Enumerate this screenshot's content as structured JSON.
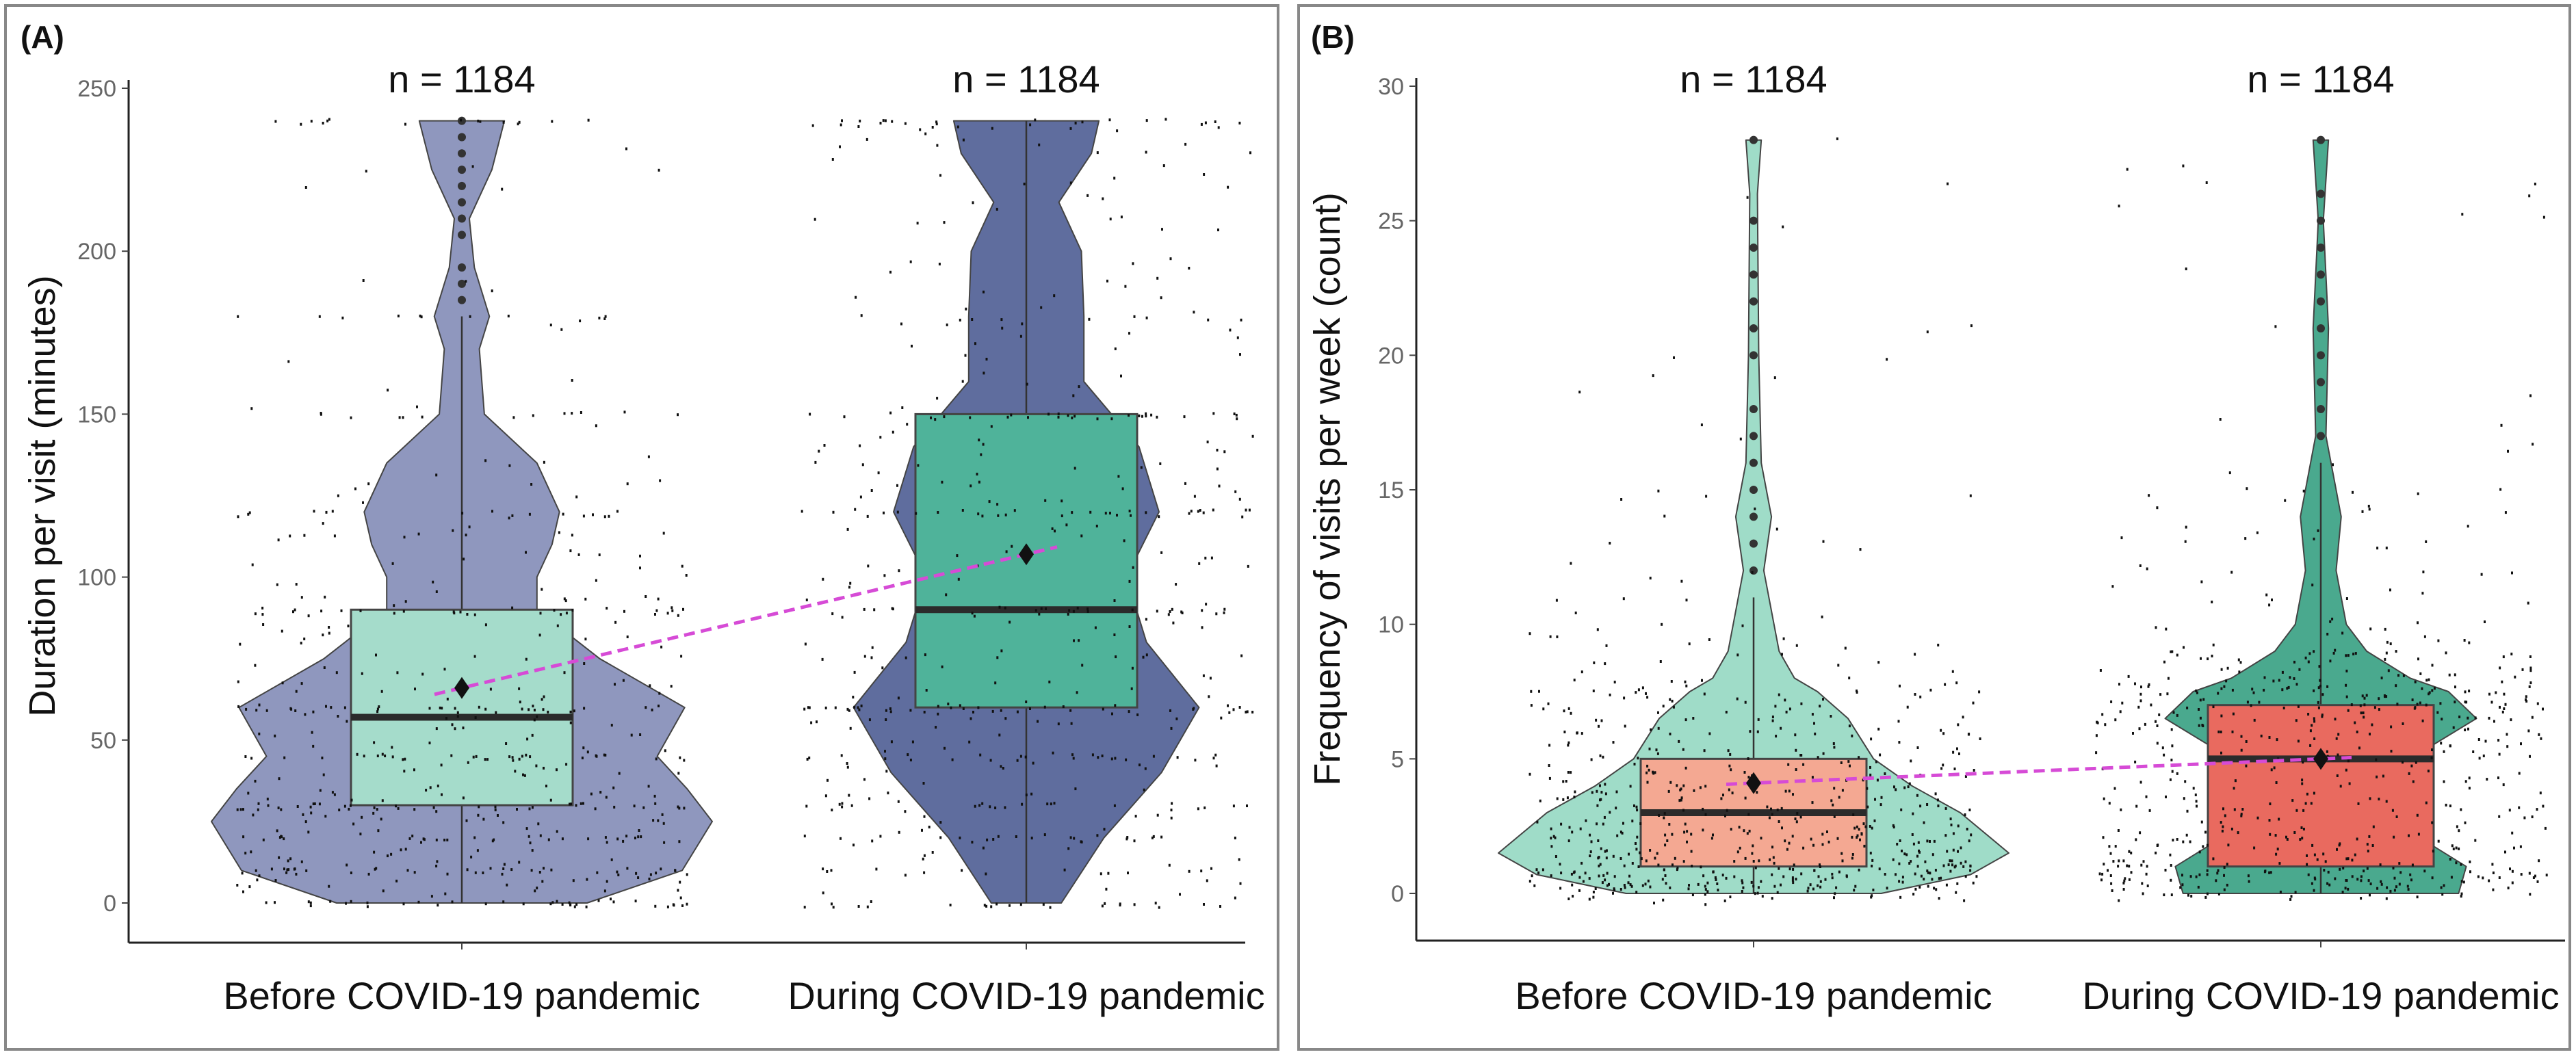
{
  "chart_data": [
    {
      "type": "violin-box",
      "panel_label": "(A)",
      "ylabel": "Duration per visit (minutes)",
      "ylim": [
        0,
        250
      ],
      "yticks": [
        0,
        50,
        100,
        150,
        200,
        250
      ],
      "categories": [
        "Before COVID-19 pandemic",
        "During COVID-19 pandemic"
      ],
      "n_labels": [
        "n = 1184",
        "n = 1184"
      ],
      "groups": [
        {
          "name": "Before COVID-19 pandemic",
          "n": 1184,
          "violin_color": "#8f97be",
          "box_color": "#a5dccb",
          "q1": 30,
          "median": 57,
          "q3": 90,
          "mean": 66,
          "whisker_low": 0,
          "whisker_high": 180,
          "outliers": [
            185,
            190,
            195,
            205,
            210,
            215,
            220,
            225,
            230,
            235,
            240
          ],
          "density": [
            [
              0,
              0.5
            ],
            [
              10,
              0.88
            ],
            [
              25,
              1.0
            ],
            [
              35,
              0.9
            ],
            [
              45,
              0.78
            ],
            [
              60,
              0.89
            ],
            [
              75,
              0.55
            ],
            [
              90,
              0.3
            ],
            [
              100,
              0.3
            ],
            [
              110,
              0.36
            ],
            [
              120,
              0.39
            ],
            [
              135,
              0.3
            ],
            [
              150,
              0.09
            ],
            [
              170,
              0.07
            ],
            [
              180,
              0.11
            ],
            [
              195,
              0.05
            ],
            [
              210,
              0.03
            ],
            [
              225,
              0.12
            ],
            [
              240,
              0.17
            ]
          ]
        },
        {
          "name": "During COVID-19 pandemic",
          "n": 1184,
          "violin_color": "#5f6d9e",
          "box_color": "#4fb39a",
          "q1": 60,
          "median": 90,
          "q3": 150,
          "mean": 107,
          "whisker_low": 0,
          "whisker_high": 240,
          "outliers": [],
          "density": [
            [
              0,
              0.14
            ],
            [
              20,
              0.31
            ],
            [
              40,
              0.54
            ],
            [
              60,
              0.69
            ],
            [
              80,
              0.48
            ],
            [
              100,
              0.4
            ],
            [
              120,
              0.53
            ],
            [
              140,
              0.45
            ],
            [
              160,
              0.23
            ],
            [
              180,
              0.23
            ],
            [
              200,
              0.22
            ],
            [
              215,
              0.13
            ],
            [
              230,
              0.26
            ],
            [
              240,
              0.29
            ]
          ]
        }
      ],
      "mean_line_color": "#d64bd6",
      "jitter_levels": [
        0,
        10,
        20,
        30,
        45,
        60,
        90,
        120,
        150,
        180,
        240
      ]
    },
    {
      "type": "violin-box",
      "panel_label": "(B)",
      "ylabel": "Frequency of visits per week (count)",
      "ylim": [
        0,
        30
      ],
      "yticks": [
        0,
        5,
        10,
        15,
        20,
        25,
        30
      ],
      "categories": [
        "Before COVID-19 pandemic",
        "During COVID-19 pandemic"
      ],
      "n_labels": [
        "n = 1184",
        "n = 1184"
      ],
      "groups": [
        {
          "name": "Before COVID-19 pandemic",
          "n": 1184,
          "violin_color": "#9fdcc8",
          "box_color": "#f4a892",
          "q1": 1,
          "median": 3,
          "q3": 5,
          "mean": 4.1,
          "whisker_low": 0,
          "whisker_high": 11,
          "outliers": [
            12,
            13,
            14,
            15,
            16,
            17,
            18,
            20,
            21,
            22,
            23,
            24,
            25,
            28
          ],
          "density": [
            [
              0,
              0.5
            ],
            [
              0.7,
              0.85
            ],
            [
              1.5,
              1.0
            ],
            [
              3,
              0.81
            ],
            [
              4,
              0.62
            ],
            [
              5,
              0.47
            ],
            [
              6.5,
              0.37
            ],
            [
              7.5,
              0.25
            ],
            [
              8,
              0.16
            ],
            [
              9,
              0.1
            ],
            [
              10,
              0.08
            ],
            [
              12,
              0.04
            ],
            [
              14,
              0.07
            ],
            [
              16,
              0.03
            ],
            [
              20,
              0.02
            ],
            [
              26,
              0.015
            ],
            [
              28,
              0.03
            ]
          ]
        },
        {
          "name": "During COVID-19 pandemic",
          "n": 1184,
          "violin_color": "#4aa98e",
          "box_color": "#e96a5f",
          "q1": 1,
          "median": 5,
          "q3": 7,
          "mean": 5,
          "whisker_low": 0,
          "whisker_high": 16,
          "outliers": [
            17,
            18,
            19,
            20,
            21,
            22,
            23,
            24,
            25,
            26,
            28
          ],
          "density": [
            [
              0,
              0.54
            ],
            [
              1,
              0.57
            ],
            [
              2,
              0.4
            ],
            [
              3,
              0.26
            ],
            [
              4,
              0.28
            ],
            [
              5,
              0.35
            ],
            [
              6.5,
              0.61
            ],
            [
              7.5,
              0.5
            ],
            [
              8,
              0.35
            ],
            [
              9,
              0.18
            ],
            [
              10,
              0.1
            ],
            [
              12,
              0.06
            ],
            [
              14,
              0.08
            ],
            [
              15,
              0.06
            ],
            [
              17,
              0.02
            ],
            [
              21,
              0.03
            ],
            [
              25,
              0.01
            ],
            [
              28,
              0.03
            ]
          ]
        }
      ],
      "mean_line_color": "#d64bd6",
      "jitter_levels": []
    }
  ]
}
